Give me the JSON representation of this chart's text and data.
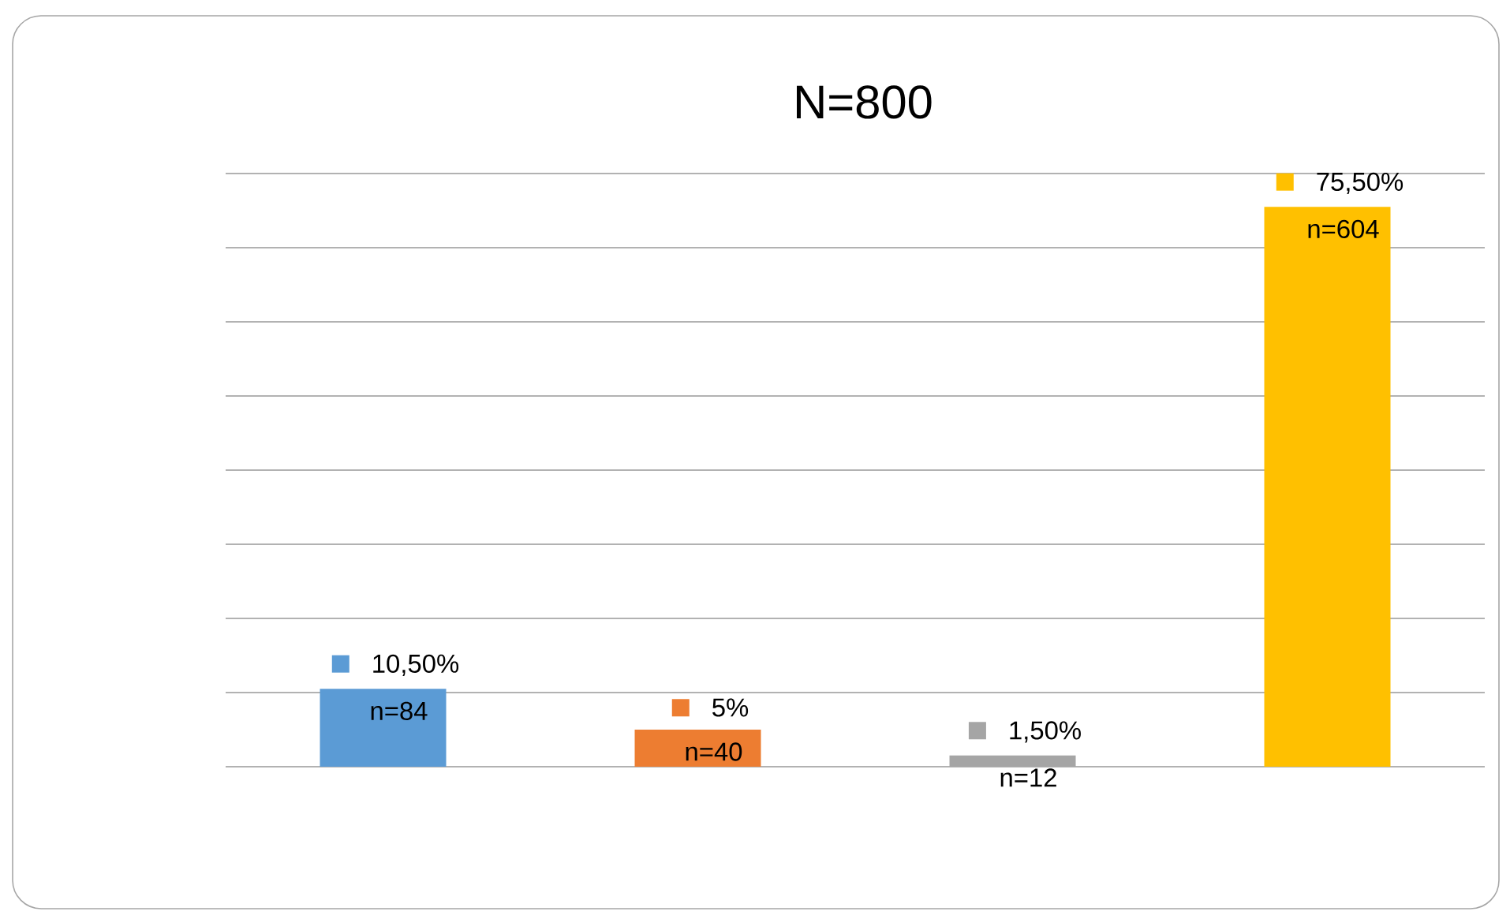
{
  "chart_data": {
    "type": "bar",
    "title": "N=800",
    "categories": [
      null,
      null,
      null,
      null
    ],
    "values": [
      10.5,
      5,
      1.5,
      75.5
    ],
    "colors": [
      "#5b9bd5",
      "#ed7d31",
      "#a5a5a5",
      "#ffc000"
    ],
    "value_labels": [
      "10,50%",
      "5%",
      "1,50%",
      "75,50%"
    ],
    "annotations": [
      {
        "text": "n=84",
        "y": 10.5
      },
      {
        "text": "n=40",
        "y": 5
      },
      {
        "text": "n=12",
        "y": 1.5
      },
      {
        "text": "n=604",
        "y": 75.5
      }
    ],
    "ylim": [
      0,
      80
    ],
    "grid": "y",
    "tick_labels": false
  }
}
